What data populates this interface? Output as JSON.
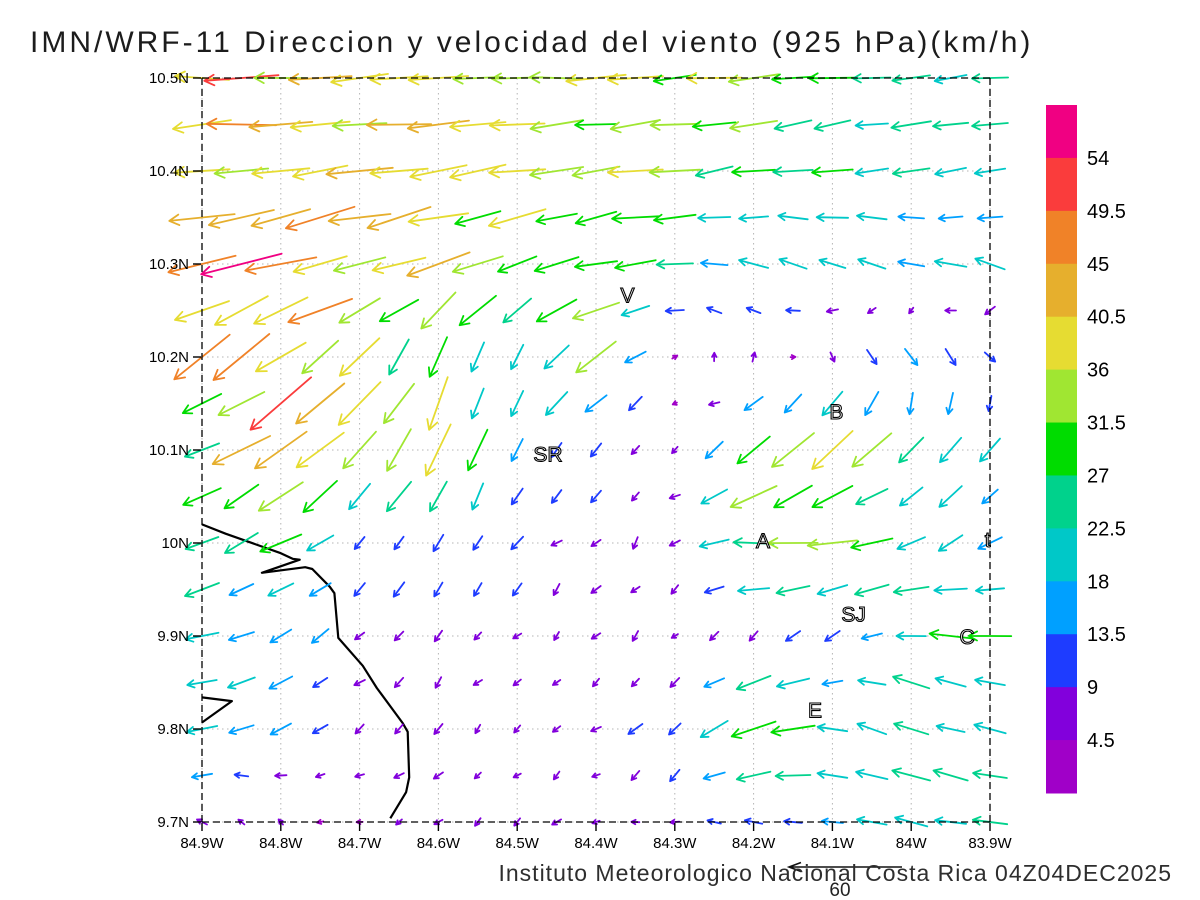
{
  "title": "IMN/WRF-11 Direccion y velocidad del viento (925 hPa)(km/h)",
  "footer": {
    "credit": "Instituto Meteorologico Nacional Costa Rica 04Z04DEC2025"
  },
  "reference_arrow": {
    "label": "60"
  },
  "axes": {
    "x_ticks": [
      {
        "label": "84.9W",
        "lon": -84.9
      },
      {
        "label": "84.8W",
        "lon": -84.8
      },
      {
        "label": "84.7W",
        "lon": -84.7
      },
      {
        "label": "84.6W",
        "lon": -84.6
      },
      {
        "label": "84.5W",
        "lon": -84.5
      },
      {
        "label": "84.4W",
        "lon": -84.4
      },
      {
        "label": "84.3W",
        "lon": -84.3
      },
      {
        "label": "84.2W",
        "lon": -84.2
      },
      {
        "label": "84.1W",
        "lon": -84.1
      },
      {
        "label": "84W",
        "lon": -84.0
      },
      {
        "label": "83.9W",
        "lon": -83.9
      }
    ],
    "y_ticks": [
      {
        "label": "10.5N",
        "lat": 10.5
      },
      {
        "label": "10.4N",
        "lat": 10.4
      },
      {
        "label": "10.3N",
        "lat": 10.3
      },
      {
        "label": "10.2N",
        "lat": 10.2
      },
      {
        "label": "10.1N",
        "lat": 10.1
      },
      {
        "label": "10N",
        "lat": 10.0
      },
      {
        "label": "9.9N",
        "lat": 9.9
      },
      {
        "label": "9.8N",
        "lat": 9.8
      },
      {
        "label": "9.7N",
        "lat": 9.7
      }
    ]
  },
  "colorbar": {
    "labels_top_to_bottom": [
      "54",
      "49.5",
      "45",
      "40.5",
      "36",
      "31.5",
      "27",
      "22.5",
      "18",
      "13.5",
      "9",
      "4.5"
    ],
    "segment_colors_top_to_bottom": [
      "#F00082",
      "#FA3C3C",
      "#F08228",
      "#E6AF2D",
      "#E6DC32",
      "#A0E632",
      "#00DC00",
      "#00D28C",
      "#00C8C8",
      "#00A0FF",
      "#1E3CFF",
      "#8200DC",
      "#A000C8"
    ]
  },
  "map_labels": [
    {
      "text": "V",
      "lon": -84.36,
      "lat": 10.266
    },
    {
      "text": "B",
      "lon": -84.095,
      "lat": 10.141
    },
    {
      "text": "SR",
      "lon": -84.461,
      "lat": 10.095
    },
    {
      "text": "A",
      "lon": -84.188,
      "lat": 10.002
    },
    {
      "text": "t",
      "lon": -83.903,
      "lat": 10.003
    },
    {
      "text": "SJ",
      "lon": -84.073,
      "lat": 9.923
    },
    {
      "text": "C",
      "lon": -83.929,
      "lat": 9.899
    },
    {
      "text": "E",
      "lon": -84.122,
      "lat": 9.82
    }
  ],
  "chart_data": {
    "type": "quiver",
    "title": "IMN/WRF-11 Direccion y velocidad del viento (925 hPa)(km/h)",
    "level": "925 hPa",
    "units": "km/h",
    "valid": "04Z04DEC2025",
    "xlim": [
      -84.9,
      -83.9
    ],
    "ylim": [
      9.7,
      10.5
    ],
    "grid_step_deg": 0.1,
    "reference_vector_kmh": 60,
    "speed_bins": [
      4.5,
      9,
      13.5,
      18,
      22.5,
      27,
      31.5,
      36,
      40.5,
      45,
      49.5,
      54
    ],
    "bin_colors_low_to_high": [
      "#A000C8",
      "#8200DC",
      "#1E3CFF",
      "#00A0FF",
      "#00C8C8",
      "#00D28C",
      "#00DC00",
      "#A0E632",
      "#E6DC32",
      "#E6AF2D",
      "#F08228",
      "#FA3C3C",
      "#F00082"
    ],
    "lon": [
      -84.9,
      -84.8,
      -84.7,
      -84.6,
      -84.5,
      -84.4,
      -84.3,
      -84.2,
      -84.1,
      -84.0,
      -83.9
    ],
    "lat": [
      10.5,
      10.4,
      10.3,
      10.2,
      10.1,
      10.0,
      9.9,
      9.8,
      9.7
    ],
    "u": [
      [
        -44,
        -42,
        -40,
        -38,
        -36,
        -34,
        -32,
        -30,
        -27,
        -24,
        -22
      ],
      [
        -44,
        -40,
        -38,
        -37,
        -36,
        -33,
        -30,
        -26,
        -23,
        -21,
        -20
      ],
      [
        -50,
        -46,
        -40,
        -36,
        -32,
        -27,
        -23,
        -20,
        -19,
        -18,
        -18
      ],
      [
        -34,
        -38,
        -22,
        -10,
        -6,
        -25,
        2,
        2,
        4,
        8,
        4
      ],
      [
        -24,
        -38,
        -26,
        -14,
        -8,
        -6,
        -4,
        -24,
        -28,
        -14,
        -10
      ],
      [
        -20,
        -22,
        -8,
        -6,
        -7,
        -5,
        -6,
        -29,
        -30,
        -20,
        -14
      ],
      [
        -22,
        -14,
        -6,
        -5,
        -4,
        -6,
        -5,
        -8,
        -10,
        -22,
        -28
      ],
      [
        -20,
        -12,
        -5,
        -6,
        -5,
        -5,
        -10,
        -34,
        -20,
        -24,
        -20
      ],
      [
        -6,
        -4,
        -4,
        -5,
        -6,
        -5,
        -6,
        -10,
        -16,
        -19,
        -22
      ]
    ],
    "v": [
      [
        0,
        -2,
        -2,
        -2,
        -2,
        -2,
        -2,
        -2,
        -2,
        -2,
        -2
      ],
      [
        -6,
        -5,
        -5,
        -6,
        -6,
        -5,
        -4,
        -4,
        -4,
        -4,
        -4
      ],
      [
        -12,
        -12,
        -10,
        -12,
        -10,
        -6,
        -3,
        5,
        6,
        5,
        5
      ],
      [
        -22,
        -26,
        -24,
        -30,
        -16,
        -18,
        3,
        6,
        -6,
        -10,
        -8
      ],
      [
        -10,
        -28,
        -30,
        -34,
        -14,
        -9,
        -4,
        -20,
        -24,
        -16,
        -14
      ],
      [
        -8,
        -12,
        -8,
        -10,
        -8,
        -6,
        -4,
        -2,
        -4,
        -10,
        -8
      ],
      [
        -5,
        -8,
        -6,
        -8,
        -5,
        -5,
        -3,
        -5,
        -8,
        2,
        3
      ],
      [
        -5,
        -6,
        -6,
        -6,
        -4,
        -5,
        -8,
        -14,
        5,
        8,
        6
      ],
      [
        2,
        2,
        -2,
        -3,
        -3,
        -2,
        -2,
        2,
        3,
        4,
        4
      ]
    ],
    "coastline": [
      [
        [
          -84.9,
          10.02
        ],
        [
          -84.87,
          10.01
        ],
        [
          -84.8,
          9.989
        ],
        [
          -84.785,
          9.983
        ],
        [
          -84.776,
          9.982
        ],
        [
          -84.824,
          9.968
        ],
        [
          -84.769,
          9.974
        ],
        [
          -84.76,
          9.972
        ],
        [
          -84.738,
          9.953
        ],
        [
          -84.732,
          9.946
        ],
        [
          -84.727,
          9.898
        ],
        [
          -84.696,
          9.868
        ],
        [
          -84.678,
          9.844
        ],
        [
          -84.645,
          9.806
        ],
        [
          -84.639,
          9.797
        ],
        [
          -84.637,
          9.748
        ],
        [
          -84.641,
          9.732
        ],
        [
          -84.661,
          9.704
        ]
      ],
      [
        [
          -84.9,
          9.834
        ],
        [
          -84.862,
          9.83
        ],
        [
          -84.9,
          9.807
        ]
      ]
    ]
  }
}
